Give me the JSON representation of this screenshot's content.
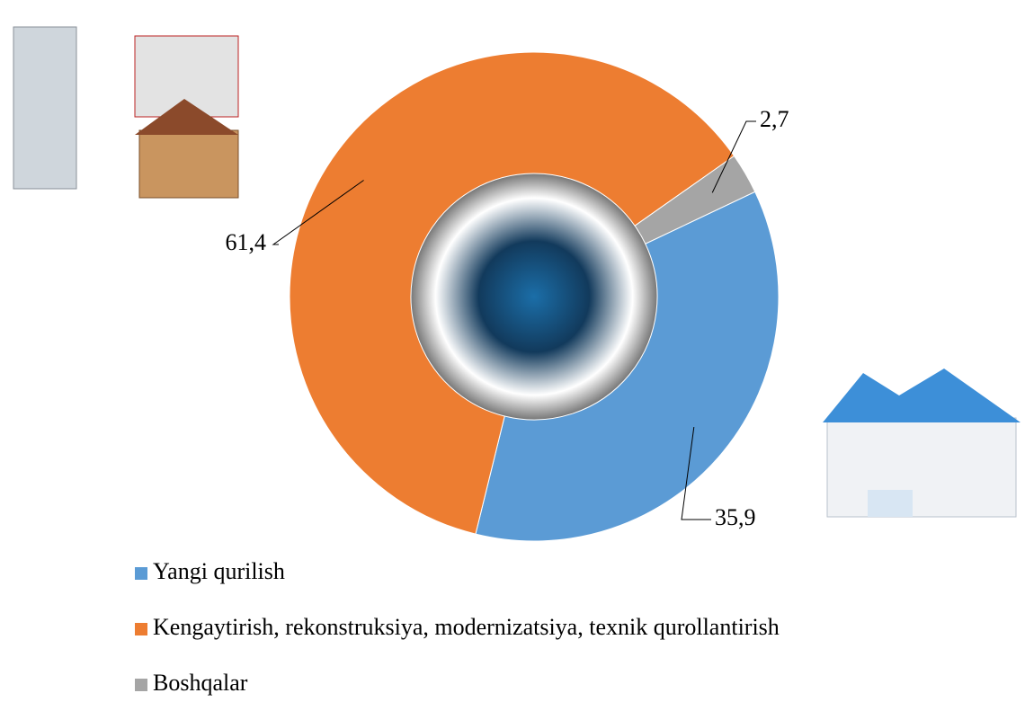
{
  "chart_data": {
    "type": "donut",
    "categories": [
      "Yangi qurilish",
      "Kengaytirish, rekonstruksiya, modernizatsiya, texnik qurollantirish",
      "Boshqalar"
    ],
    "values": [
      35.9,
      61.4,
      2.7
    ],
    "value_labels": [
      "35,9",
      "61,4",
      "2,7"
    ],
    "colors": [
      "#5b9bd5",
      "#ed7d31",
      "#a5a5a5"
    ]
  }
}
